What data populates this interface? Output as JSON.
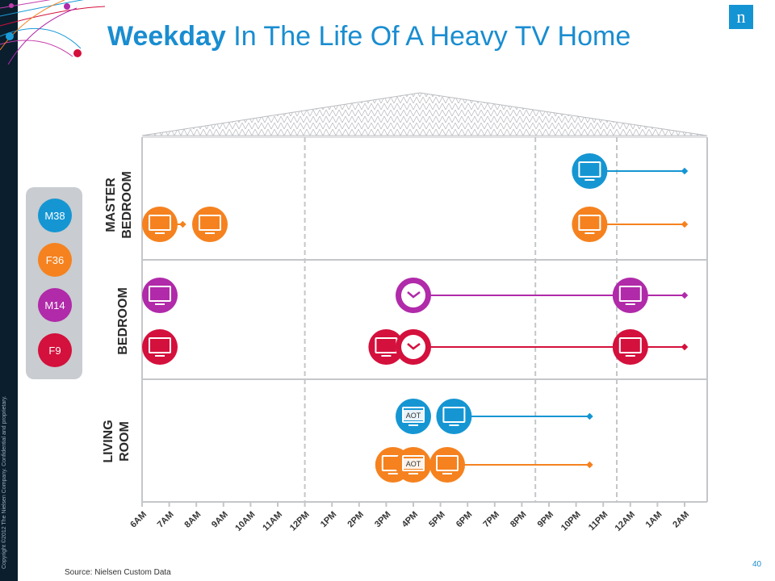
{
  "slide": {
    "title_bold": "Weekday",
    "title_rest": " In The Life Of A Heavy TV Home",
    "logo_letter": "n",
    "copyright": "Copyright ©2012 The Nielsen Company. Confidential and proprietary.",
    "source": "Source: Nielsen Custom Data",
    "page_number": "40"
  },
  "colors": {
    "M38": "#1596d3",
    "F36": "#f5821f",
    "M14": "#b02aa9",
    "F9": "#d4103c",
    "accent": "#1a8dd0"
  },
  "members": [
    {
      "label": "M38",
      "color": "#1596d3"
    },
    {
      "label": "F36",
      "color": "#f5821f"
    },
    {
      "label": "M14",
      "color": "#b02aa9"
    },
    {
      "label": "F9",
      "color": "#d4103c"
    }
  ],
  "rooms": [
    {
      "line1": "MASTER",
      "line2": "BEDROOM"
    },
    {
      "line1": "BEDROOM",
      "line2": ""
    },
    {
      "line1": "LIVING",
      "line2": "ROOM"
    }
  ],
  "chart_data": {
    "type": "timeline",
    "x_ticks": [
      "6AM",
      "7AM",
      "8AM",
      "9AM",
      "10AM",
      "11AM",
      "12PM",
      "1PM",
      "2PM",
      "3PM",
      "4PM",
      "5PM",
      "6PM",
      "7PM",
      "8PM",
      "9PM",
      "10PM",
      "11PM",
      "12AM",
      "1AM",
      "2AM"
    ],
    "reference_times": [
      "12PM",
      "8:30PM",
      "11:30PM"
    ],
    "icon_labels": {
      "aot": "AOT"
    },
    "rows": [
      {
        "room": "MASTER BEDROOM",
        "member": "M38",
        "icons": [
          {
            "kind": "tv",
            "time": "10:30PM"
          }
        ],
        "segments": [
          {
            "start": "10:30PM",
            "end": "2AM"
          }
        ]
      },
      {
        "room": "MASTER BEDROOM",
        "member": "F36",
        "icons": [
          {
            "kind": "tv",
            "time": "6AM"
          },
          {
            "kind": "tv",
            "time": "8:30AM"
          },
          {
            "kind": "tv",
            "time": "10:30PM"
          }
        ],
        "segments": [
          {
            "start": "6AM",
            "end": "7:30AM"
          },
          {
            "start": "10:30PM",
            "end": "2AM"
          }
        ]
      },
      {
        "room": "BEDROOM",
        "member": "M14",
        "icons": [
          {
            "kind": "tv",
            "time": "6AM"
          },
          {
            "kind": "clock",
            "time": "4PM"
          },
          {
            "kind": "tv",
            "time": "12AM"
          }
        ],
        "segments": [
          {
            "start": "4PM",
            "end": "2AM"
          }
        ]
      },
      {
        "room": "BEDROOM",
        "member": "F9",
        "icons": [
          {
            "kind": "tv",
            "time": "6AM"
          },
          {
            "kind": "tv",
            "time": "3PM"
          },
          {
            "kind": "clock",
            "time": "4PM"
          },
          {
            "kind": "tv",
            "time": "12AM"
          }
        ],
        "segments": [
          {
            "start": "4PM",
            "end": "2AM"
          }
        ]
      },
      {
        "room": "LIVING ROOM",
        "member": "M38",
        "icons": [
          {
            "kind": "tv-aot",
            "time": "4PM"
          },
          {
            "kind": "tv",
            "time": "5:30PM"
          }
        ],
        "segments": [
          {
            "start": "5:30PM",
            "end": "10:30PM"
          }
        ]
      },
      {
        "room": "LIVING ROOM",
        "member": "F36",
        "icons": [
          {
            "kind": "tv",
            "time": "3:15PM"
          },
          {
            "kind": "tv-aot",
            "time": "4PM"
          },
          {
            "kind": "tv",
            "time": "5:15PM"
          }
        ],
        "segments": [
          {
            "start": "5:15PM",
            "end": "10:30PM"
          }
        ]
      }
    ]
  }
}
